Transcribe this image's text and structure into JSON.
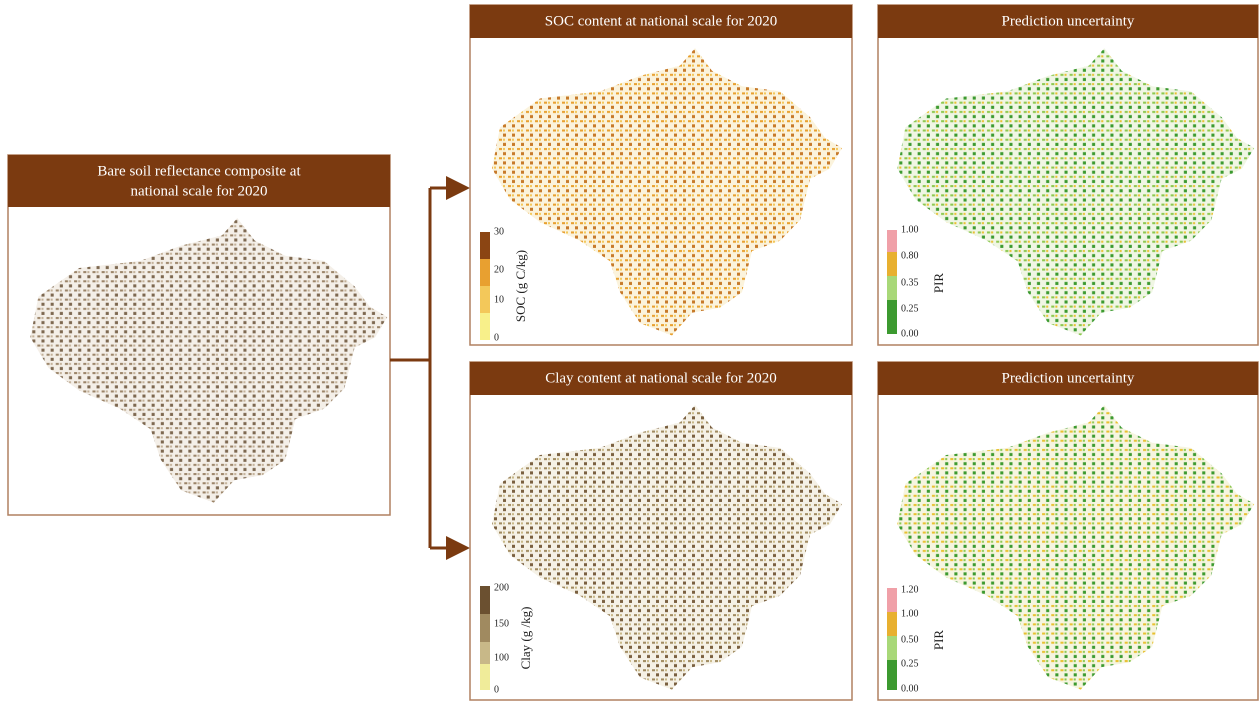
{
  "panels": [
    {
      "title_lines": [
        "Bare soil reflectance composite at",
        "national scale for 2020"
      ]
    },
    {
      "title": "SOC content at national scale for 2020",
      "legend": {
        "title": "SOC (g C/kg)",
        "labels": [
          "30",
          "20",
          "10",
          "0"
        ]
      }
    },
    {
      "title": "Prediction uncertainty",
      "legend": {
        "title": "PIR",
        "labels": [
          "1.00",
          "0.80",
          "0.35",
          "0.25",
          "0.00"
        ]
      }
    },
    {
      "title": "Clay content at national scale for 2020",
      "legend": {
        "title": "Clay (g /kg)",
        "labels": [
          "200",
          "150",
          "100",
          "0"
        ]
      }
    },
    {
      "title": "Prediction uncertainty",
      "legend": {
        "title": "PIR",
        "labels": [
          "1.20",
          "1.00",
          "0.50",
          "0.25",
          "0.00"
        ]
      }
    }
  ]
}
